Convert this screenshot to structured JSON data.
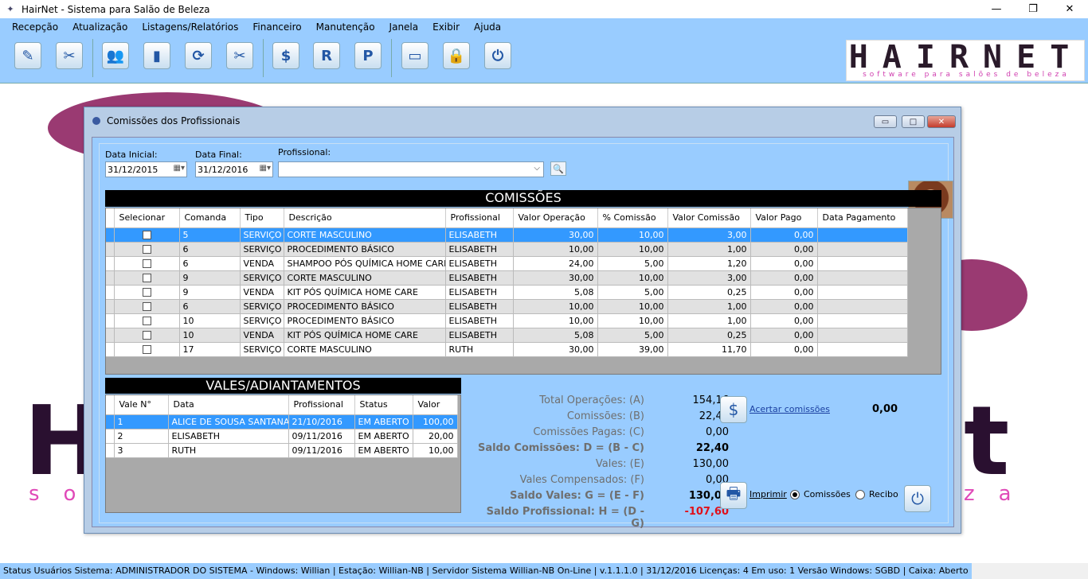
{
  "window": {
    "title": "HairNet - Sistema para Salão de Beleza",
    "minimize": "—",
    "maximize": "❐",
    "close": "✕"
  },
  "menu": [
    "Recepção",
    "Atualização",
    "Listagens/Relatórios",
    "Financeiro",
    "Manutenção",
    "Janela",
    "Exibir",
    "Ajuda"
  ],
  "toolbar": {
    "icons": [
      "receipt-icon",
      "scissors-icon",
      "people-icon",
      "door-icon",
      "refresh-icon",
      "tools-icon",
      "dollar-icon",
      "r-icon",
      "p-icon",
      "keyboard-icon",
      "lock-icon",
      "power-icon"
    ],
    "glyphs": [
      "✎",
      "✂",
      "👥",
      "▮",
      "⟳",
      "✂",
      "$",
      "R",
      "P",
      "▭",
      "🔒",
      "⏻"
    ]
  },
  "logo": {
    "main": "HAIRNET",
    "sub": "software para salões de beleza"
  },
  "form": {
    "title": "Comissões dos Profissionais",
    "data_inicial_label": "Data Inicial:",
    "data_inicial": "31/12/2015",
    "data_final_label": "Data Final:",
    "data_final": "31/12/2016",
    "profissional_label": "Profissional:",
    "profissional": ""
  },
  "comissoes": {
    "title": "COMISSÕES",
    "headers": [
      "Selecionar",
      "Comanda",
      "Tipo",
      "Descrição",
      "Profissional",
      "Valor Operação",
      "% Comissão",
      "Valor Comissão",
      "Valor Pago",
      "Data Pagamento"
    ],
    "rows": [
      [
        "5",
        "SERVIÇO",
        "CORTE MASCULINO",
        "ELISABETH",
        "30,00",
        "10,00",
        "3,00",
        "0,00",
        ""
      ],
      [
        "6",
        "SERVIÇO",
        "PROCEDIMENTO BÁSICO",
        "ELISABETH",
        "10,00",
        "10,00",
        "1,00",
        "0,00",
        ""
      ],
      [
        "6",
        "VENDA",
        "SHAMPOO PÓS QUÍMICA HOME CARE",
        "ELISABETH",
        "24,00",
        "5,00",
        "1,20",
        "0,00",
        ""
      ],
      [
        "9",
        "SERVIÇO",
        "CORTE MASCULINO",
        "ELISABETH",
        "30,00",
        "10,00",
        "3,00",
        "0,00",
        ""
      ],
      [
        "9",
        "VENDA",
        "KIT PÓS QUÍMICA HOME CARE",
        "ELISABETH",
        "5,08",
        "5,00",
        "0,25",
        "0,00",
        ""
      ],
      [
        "6",
        "SERVIÇO",
        "PROCEDIMENTO BÁSICO",
        "ELISABETH",
        "10,00",
        "10,00",
        "1,00",
        "0,00",
        ""
      ],
      [
        "10",
        "SERVIÇO",
        "PROCEDIMENTO BÁSICO",
        "ELISABETH",
        "10,00",
        "10,00",
        "1,00",
        "0,00",
        ""
      ],
      [
        "10",
        "VENDA",
        "KIT PÓS QUÍMICA HOME CARE",
        "ELISABETH",
        "5,08",
        "5,00",
        "0,25",
        "0,00",
        ""
      ],
      [
        "17",
        "SERVIÇO",
        "CORTE MASCULINO",
        "RUTH",
        "30,00",
        "39,00",
        "11,70",
        "0,00",
        ""
      ]
    ]
  },
  "vales": {
    "title": "VALES/ADIANTAMENTOS",
    "headers": [
      "Vale N°",
      "Data",
      "Profissional",
      "Status",
      "Valor"
    ],
    "rows": [
      [
        "1",
        "ALICE DE SOUSA SANTANA",
        "21/10/2016",
        "EM ABERTO",
        "100,00"
      ],
      [
        "2",
        "ELISABETH",
        "09/11/2016",
        "EM ABERTO",
        "20,00"
      ],
      [
        "3",
        "RUTH",
        "09/11/2016",
        "EM ABERTO",
        "10,00"
      ]
    ]
  },
  "totals": [
    {
      "label": "Total Operações: (A)",
      "value": "154,16",
      "style": ""
    },
    {
      "label": "Comissões: (B)",
      "value": "22,40",
      "style": ""
    },
    {
      "label": "Comissões Pagas: (C)",
      "value": "0,00",
      "style": ""
    },
    {
      "label": "Saldo Comissões: D = (B - C)",
      "value": "22,40",
      "style": "b"
    },
    {
      "label": "Vales: (E)",
      "value": "130,00",
      "style": ""
    },
    {
      "label": "Vales Compensados: (F)",
      "value": "0,00",
      "style": ""
    },
    {
      "label": "Saldo Vales: G = (E - F)",
      "value": "130,00",
      "style": "b"
    },
    {
      "label": "Saldo Profissional: H = (D - G)",
      "value": "-107,60",
      "style": "b red"
    }
  ],
  "actions": {
    "acertar_label": "Acertar comissões",
    "acertar_value": "0,00",
    "imprimir_label": "Imprimir",
    "radio_comissoes": "Comissões",
    "radio_recibo": "Recibo",
    "selected": "Comissões"
  },
  "status": "Status  Usuários Sistema: ADMINISTRADOR DO SISTEMA   - Windows: Willian | Estação: Willian-NB      | Servidor Sistema Willian-NB On-Line  | v.1.1.1.0  | 31/12/2016  Licenças: 4  Em uso: 1  Versão Windows:   SGBD  | Caixa: Aberto"
}
